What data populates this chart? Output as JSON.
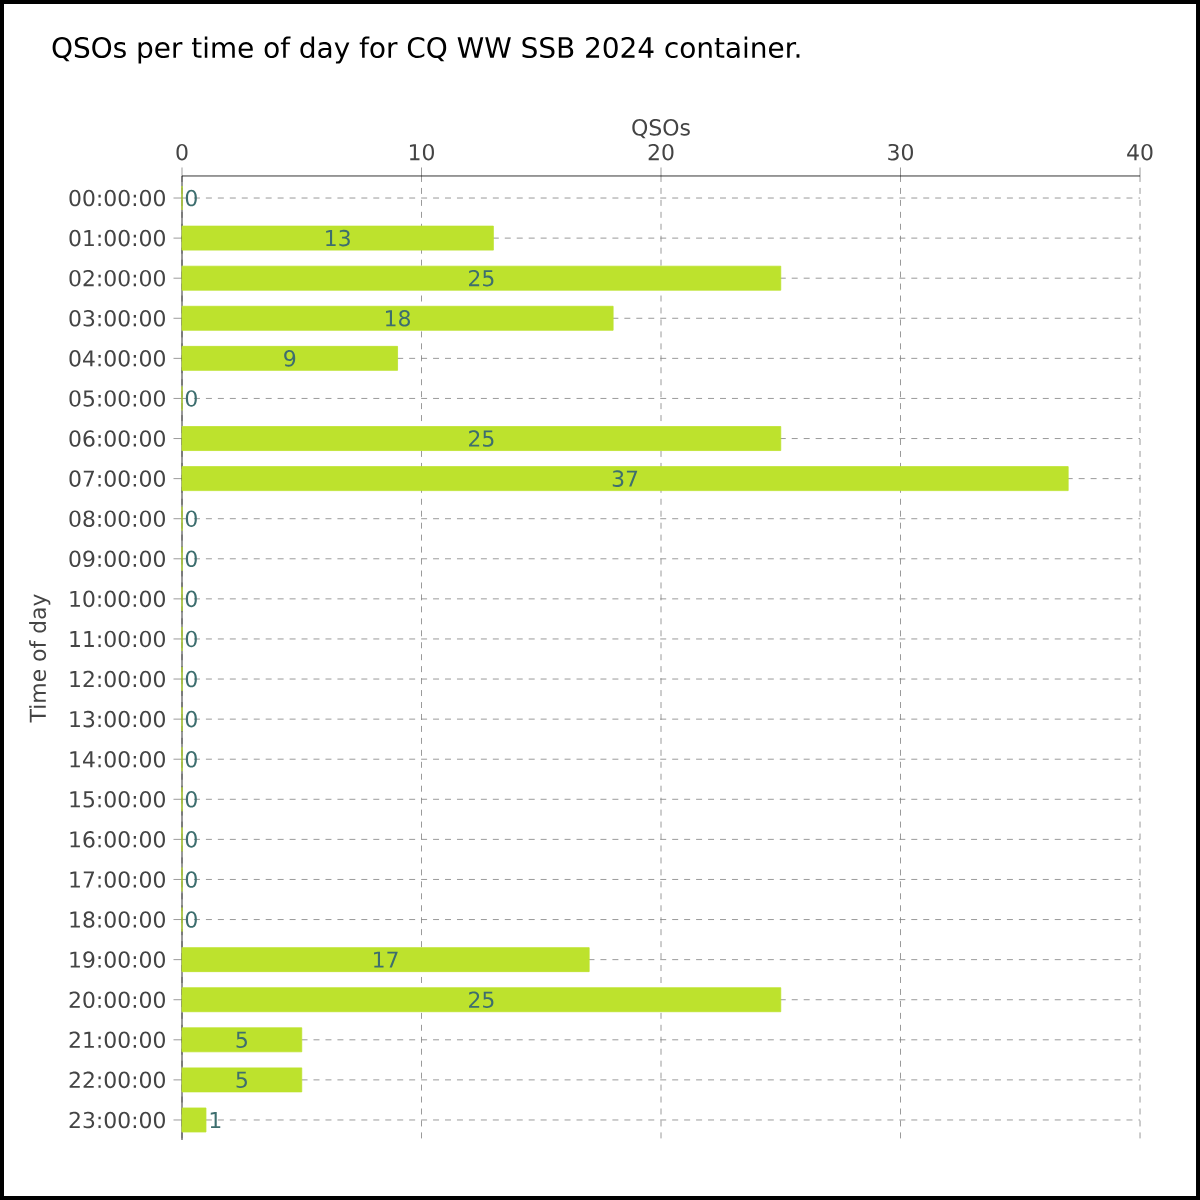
{
  "chart_data": {
    "type": "bar",
    "orientation": "horizontal",
    "title": "QSOs per time of day for CQ WW SSB 2024 container.",
    "xlabel": "QSOs",
    "ylabel": "Time of day",
    "categories": [
      "00:00:00",
      "01:00:00",
      "02:00:00",
      "03:00:00",
      "04:00:00",
      "05:00:00",
      "06:00:00",
      "07:00:00",
      "08:00:00",
      "09:00:00",
      "10:00:00",
      "11:00:00",
      "12:00:00",
      "13:00:00",
      "14:00:00",
      "15:00:00",
      "16:00:00",
      "17:00:00",
      "18:00:00",
      "19:00:00",
      "20:00:00",
      "21:00:00",
      "22:00:00",
      "23:00:00"
    ],
    "values": [
      0,
      13,
      25,
      18,
      9,
      0,
      25,
      37,
      0,
      0,
      0,
      0,
      0,
      0,
      0,
      0,
      0,
      0,
      0,
      17,
      25,
      5,
      5,
      1
    ],
    "color": "#bde22d",
    "xlim": [
      0,
      40
    ],
    "xticks": [
      0,
      10,
      20,
      30,
      40
    ],
    "grid": true,
    "data_labels": true
  }
}
